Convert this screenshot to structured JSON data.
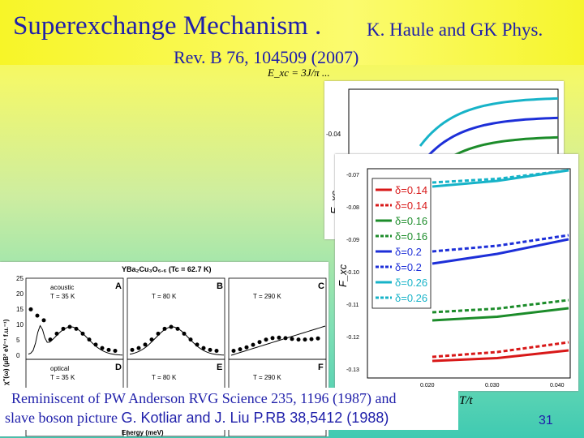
{
  "slide": {
    "title": "Superexchange Mechanism .",
    "authors": "K. Haule and GK  Phys.",
    "reference": "Rev. B 76, 104509 (2007)",
    "formula": "E_xc = 3J/π ...",
    "caption_line1": "Reminiscent of PW Anderson RVG  Science 235, 1196 (1987) and",
    "caption_line2_serif": "slave boson picture",
    "caption_line2_sans": "G. Kotliar and J. Liu  P.RB 38,5412 (1988)",
    "page_number": "31"
  },
  "back_plot": {
    "ylabel": "E_xc",
    "ytick": "-0.04",
    "colors": [
      "#17b3c8",
      "#1d2fd8",
      "#1c8c2a",
      "#d81818"
    ]
  },
  "front_plot": {
    "ylabel": "F_xc",
    "xlabel": "T/t",
    "yticks": [
      "-0.07",
      "-0.08",
      "-0.09",
      "-0.10",
      "-0.11",
      "-0.12",
      "-0.13"
    ],
    "xticks": [
      "0.020",
      "0.030",
      "0.040"
    ],
    "legend": [
      {
        "label": "δ=0.14",
        "color": "#d81818",
        "style": "solid"
      },
      {
        "label": "δ=0.14",
        "color": "#d81818",
        "style": "dashed"
      },
      {
        "label": "δ=0.16",
        "color": "#1c8c2a",
        "style": "solid"
      },
      {
        "label": "δ=0.16",
        "color": "#1c8c2a",
        "style": "dashed"
      },
      {
        "label": "δ=0.2",
        "color": "#1d2fd8",
        "style": "solid"
      },
      {
        "label": "δ=0.2",
        "color": "#1d2fd8",
        "style": "dashed"
      },
      {
        "label": "δ=0.26",
        "color": "#17b3c8",
        "style": "solid"
      },
      {
        "label": "δ=0.26",
        "color": "#17b3c8",
        "style": "dashed"
      }
    ]
  },
  "neutron_plot": {
    "title": "YBa₂Cu₃O₆.₆ (Tc = 62.7 K)",
    "ylabel": "χ''(ω) (μB² eV⁻¹ f.u.⁻¹)",
    "xlabel": "Energy (meV)",
    "yticks": [
      "0",
      "5",
      "10",
      "15",
      "20",
      "25"
    ],
    "panels": [
      {
        "letter": "A",
        "mode": "acoustic",
        "temp": "T = 35 K"
      },
      {
        "letter": "B",
        "mode": "",
        "temp": "T = 80 K"
      },
      {
        "letter": "C",
        "mode": "",
        "temp": "T = 290 K"
      },
      {
        "letter": "D",
        "mode": "optical",
        "temp": "T = 35 K"
      },
      {
        "letter": "E",
        "mode": "",
        "temp": "T = 80 K"
      },
      {
        "letter": "F",
        "mode": "",
        "temp": "T = 290 K"
      }
    ]
  }
}
